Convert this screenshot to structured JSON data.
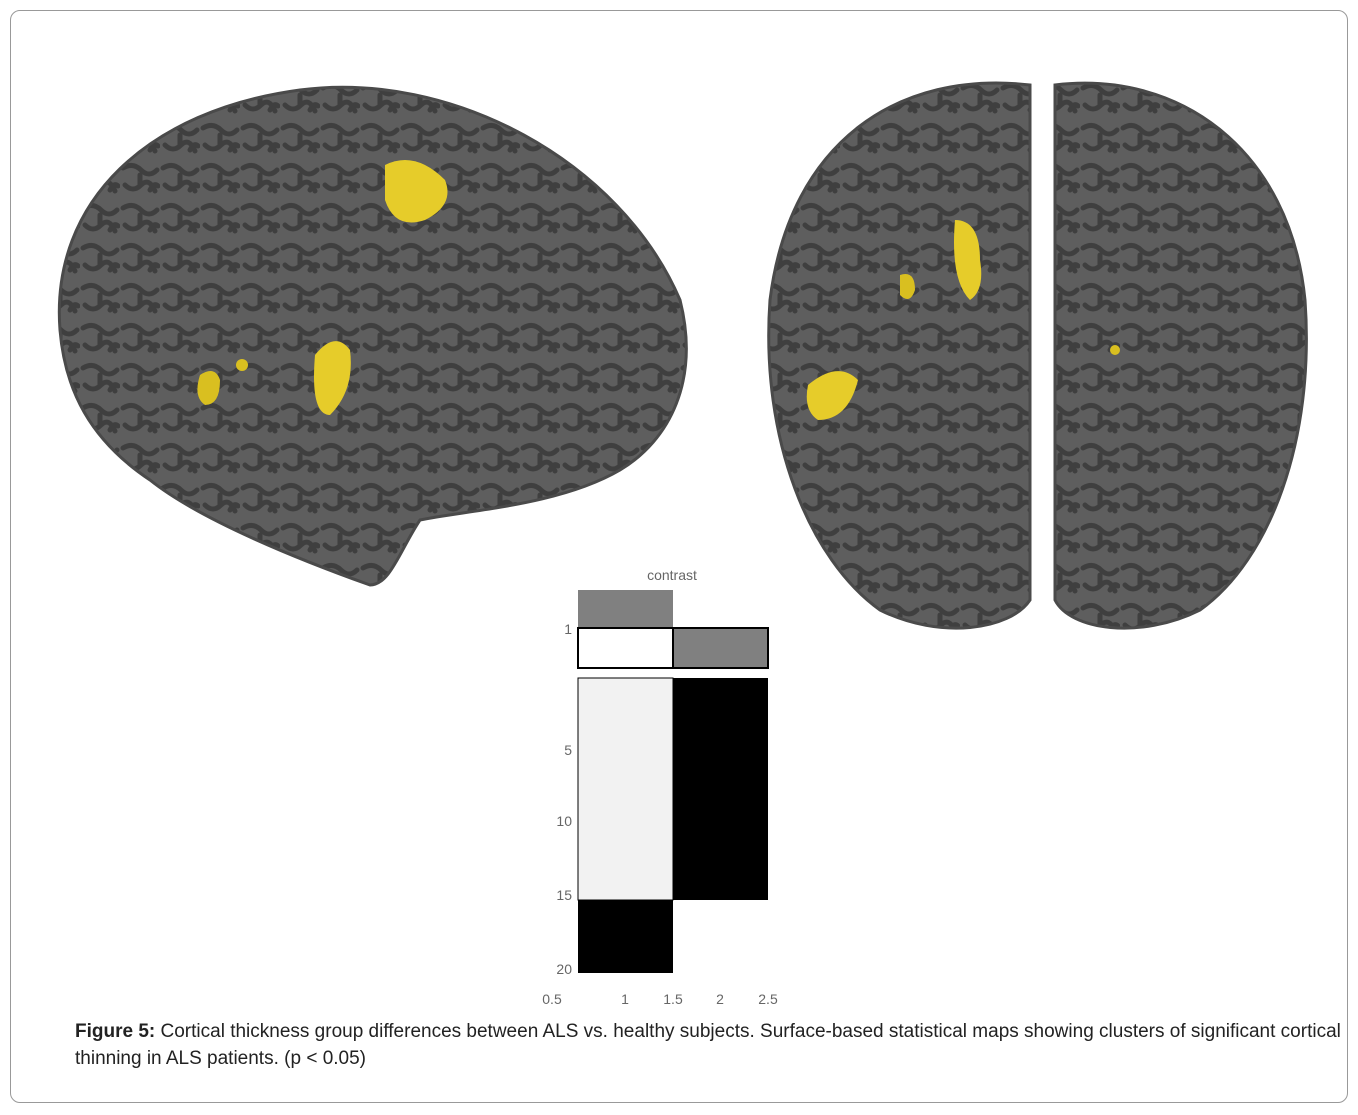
{
  "figure": {
    "inset": {
      "title": "contrast",
      "y_labels": [
        "1",
        "5",
        "10",
        "15",
        "20"
      ],
      "x_labels": [
        "0.5",
        "1",
        "1.5",
        "2",
        "2.5"
      ]
    },
    "caption": {
      "label": "Figure 5:",
      "text": " Cortical thickness group differences between ALS vs. healthy subjects. Surface-based statistical maps showing clusters of significant cortical thinning in ALS patients. (p < 0.05)"
    }
  }
}
